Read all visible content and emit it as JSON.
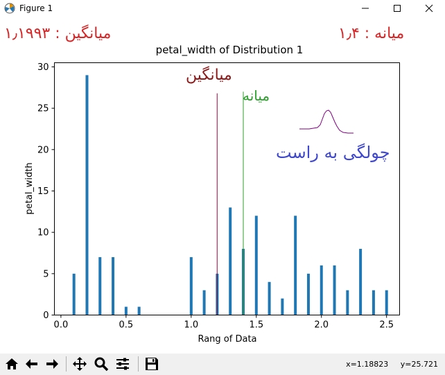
{
  "window": {
    "title": "Figure 1"
  },
  "annotations": {
    "mean_top": "میانگین : ۱٫۱۹۹۳",
    "median_top": "میانه :   ۱٫۴",
    "mean_line_label": "میانگین",
    "median_line_label": "میانه",
    "skew_label": "چولگی به راست"
  },
  "colors": {
    "bar": "#1f77b4",
    "mean_line": "#7b1040",
    "median_line": "#2ca02c",
    "top_text": "#d62728",
    "mean_text": "#8b1a1a",
    "median_text": "#2ca02c",
    "skew_text": "#3f48cc",
    "skew_curve": "#800080"
  },
  "chart_data": {
    "type": "bar",
    "title": "petal_width of Distribution 1",
    "xlabel": "Rang of Data",
    "ylabel": "petal_width",
    "xlim": [
      -0.05,
      2.6
    ],
    "ylim": [
      0,
      30.5
    ],
    "xticks": [
      0.0,
      0.5,
      1.0,
      1.5,
      2.0,
      2.5
    ],
    "xtick_labels": [
      "0.0",
      "0.5",
      "1.0",
      "1.5",
      "2.0",
      "2.5"
    ],
    "yticks": [
      0,
      5,
      10,
      15,
      20,
      25,
      30
    ],
    "ytick_labels": [
      "0",
      "5",
      "10",
      "15",
      "20",
      "25",
      "30"
    ],
    "bars": [
      {
        "x": 0.1,
        "y": 5
      },
      {
        "x": 0.2,
        "y": 29
      },
      {
        "x": 0.3,
        "y": 7
      },
      {
        "x": 0.4,
        "y": 7
      },
      {
        "x": 0.5,
        "y": 1
      },
      {
        "x": 0.6,
        "y": 1
      },
      {
        "x": 1.0,
        "y": 7
      },
      {
        "x": 1.1,
        "y": 3
      },
      {
        "x": 1.2,
        "y": 5
      },
      {
        "x": 1.3,
        "y": 13
      },
      {
        "x": 1.4,
        "y": 8
      },
      {
        "x": 1.5,
        "y": 12
      },
      {
        "x": 1.6,
        "y": 4
      },
      {
        "x": 1.7,
        "y": 2
      },
      {
        "x": 1.8,
        "y": 12
      },
      {
        "x": 1.9,
        "y": 5
      },
      {
        "x": 2.0,
        "y": 6
      },
      {
        "x": 2.1,
        "y": 6
      },
      {
        "x": 2.2,
        "y": 3
      },
      {
        "x": 2.3,
        "y": 8
      },
      {
        "x": 2.4,
        "y": 3
      },
      {
        "x": 2.5,
        "y": 3
      }
    ],
    "mean_line": {
      "x": 1.1993,
      "y": 26.8
    },
    "median_line": {
      "x": 1.4,
      "y": 27
    }
  },
  "toolbar": {
    "items": [
      "home-icon",
      "back-icon",
      "forward-icon",
      "pan-icon",
      "zoom-icon",
      "configure-icon",
      "save-icon"
    ],
    "x_readout": "x=1.18823",
    "y_readout": "y=25.721"
  }
}
